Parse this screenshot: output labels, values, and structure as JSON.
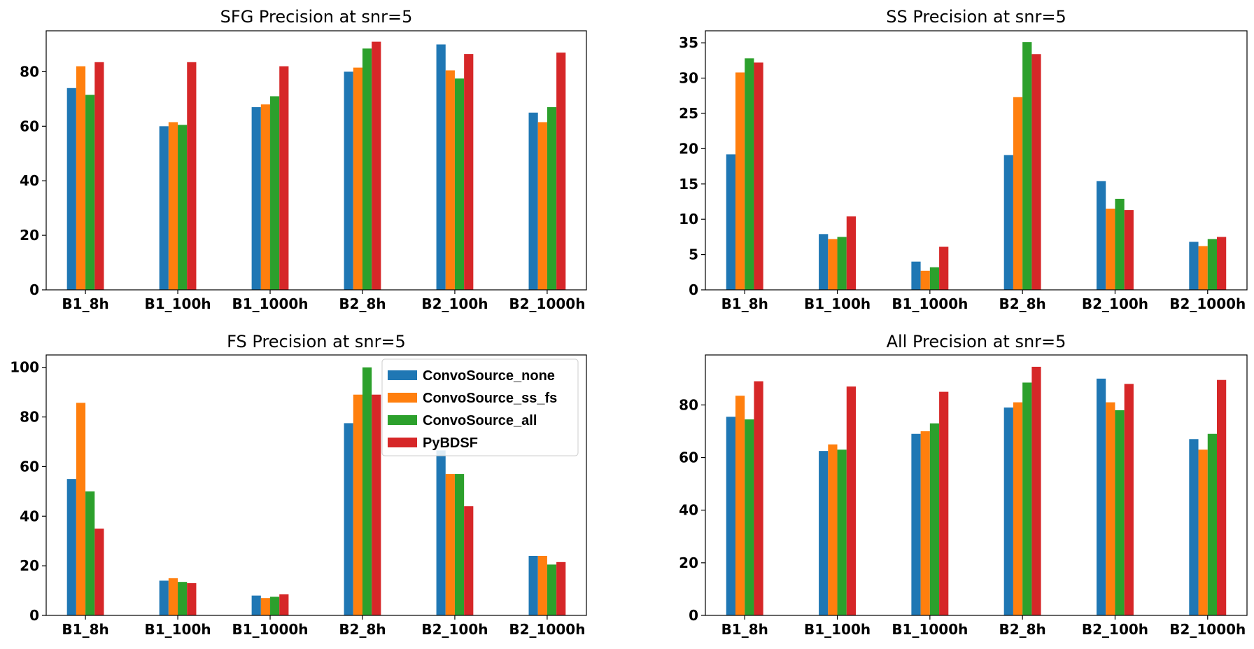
{
  "figure": {
    "series_colors": [
      "#1f77b4",
      "#ff7f0e",
      "#2ca02c",
      "#d62728"
    ],
    "legend_entries": [
      "ConvoSource_none",
      "ConvoSource_ss_fs",
      "ConvoSource_all",
      "PyBDSF"
    ]
  },
  "chart_data": [
    {
      "type": "bar",
      "title": "SFG Precision at snr=5",
      "categories": [
        "B1_8h",
        "B1_100h",
        "B1_1000h",
        "B2_8h",
        "B2_100h",
        "B2_1000h"
      ],
      "ylim": [
        0,
        95
      ],
      "yticks": [
        0,
        20,
        40,
        60,
        80
      ],
      "xlabel": "",
      "ylabel": "",
      "series": [
        {
          "name": "ConvoSource_none",
          "values": [
            74,
            60,
            67,
            80,
            90,
            65
          ]
        },
        {
          "name": "ConvoSource_ss_fs",
          "values": [
            82,
            61.5,
            68,
            81.5,
            80.5,
            61.5
          ]
        },
        {
          "name": "ConvoSource_all",
          "values": [
            71.5,
            60.5,
            71,
            88.5,
            77.5,
            67
          ]
        },
        {
          "name": "PyBDSF",
          "values": [
            83.5,
            83.5,
            82,
            91,
            86.5,
            87
          ]
        }
      ]
    },
    {
      "type": "bar",
      "title": "SS Precision at snr=5",
      "categories": [
        "B1_8h",
        "B1_100h",
        "B1_1000h",
        "B2_8h",
        "B2_100h",
        "B2_1000h"
      ],
      "ylim": [
        0,
        36.7
      ],
      "yticks": [
        0,
        5,
        10,
        15,
        20,
        25,
        30,
        35
      ],
      "xlabel": "",
      "ylabel": "",
      "series": [
        {
          "name": "ConvoSource_none",
          "values": [
            19.2,
            7.9,
            4.0,
            19.1,
            15.4,
            6.8
          ]
        },
        {
          "name": "ConvoSource_ss_fs",
          "values": [
            30.8,
            7.2,
            2.7,
            27.3,
            11.5,
            6.2
          ]
        },
        {
          "name": "ConvoSource_all",
          "values": [
            32.8,
            7.5,
            3.2,
            35.1,
            12.9,
            7.2
          ]
        },
        {
          "name": "PyBDSF",
          "values": [
            32.2,
            10.4,
            6.1,
            33.4,
            11.3,
            7.5
          ]
        }
      ]
    },
    {
      "type": "bar",
      "title": "FS Precision at snr=5",
      "categories": [
        "B1_8h",
        "B1_100h",
        "B1_1000h",
        "B2_8h",
        "B2_100h",
        "B2_1000h"
      ],
      "ylim": [
        0,
        105
      ],
      "yticks": [
        0,
        20,
        40,
        60,
        80,
        100
      ],
      "xlabel": "",
      "ylabel": "",
      "legend": "top-right",
      "series": [
        {
          "name": "ConvoSource_none",
          "values": [
            55,
            14,
            8,
            77.5,
            66.5,
            24
          ]
        },
        {
          "name": "ConvoSource_ss_fs",
          "values": [
            85.7,
            15,
            7,
            89,
            57,
            24
          ]
        },
        {
          "name": "ConvoSource_all",
          "values": [
            50,
            13.5,
            7.5,
            100,
            57,
            20.5
          ]
        },
        {
          "name": "PyBDSF",
          "values": [
            35,
            13,
            8.5,
            89,
            44,
            21.5
          ]
        }
      ]
    },
    {
      "type": "bar",
      "title": "All Precision at snr=5",
      "categories": [
        "B1_8h",
        "B1_100h",
        "B1_1000h",
        "B2_8h",
        "B2_100h",
        "B2_1000h"
      ],
      "ylim": [
        0,
        99
      ],
      "yticks": [
        0,
        20,
        40,
        60,
        80
      ],
      "xlabel": "",
      "ylabel": "",
      "series": [
        {
          "name": "ConvoSource_none",
          "values": [
            75.5,
            62.5,
            69,
            79,
            90,
            67
          ]
        },
        {
          "name": "ConvoSource_ss_fs",
          "values": [
            83.5,
            65,
            70,
            81,
            81,
            63
          ]
        },
        {
          "name": "ConvoSource_all",
          "values": [
            74.5,
            63,
            73,
            88.5,
            78,
            69
          ]
        },
        {
          "name": "PyBDSF",
          "values": [
            89,
            87,
            85,
            94.5,
            88,
            89.5
          ]
        }
      ]
    }
  ]
}
